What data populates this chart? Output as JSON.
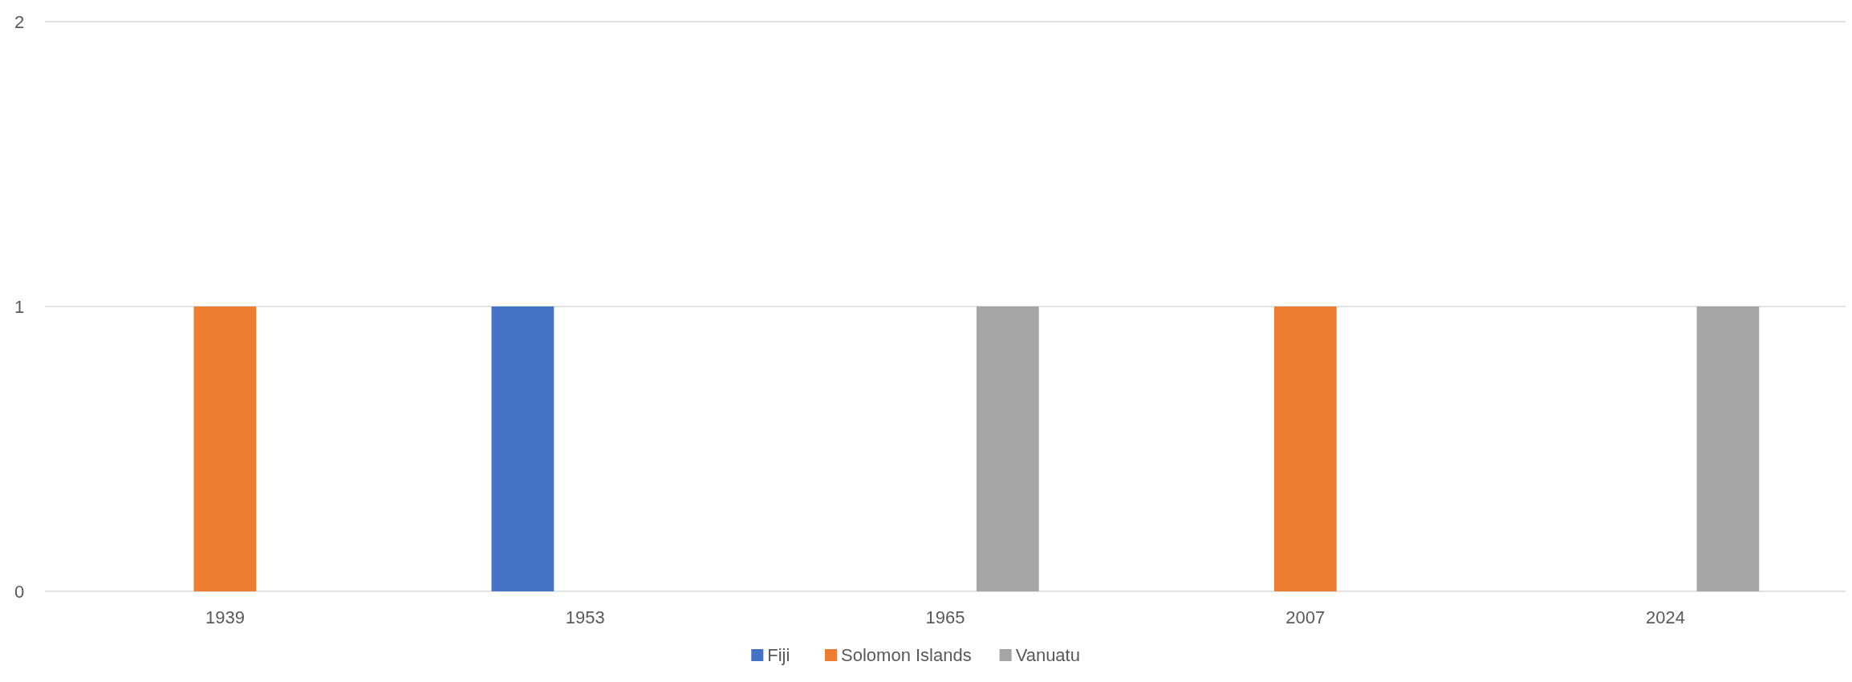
{
  "chart_data": {
    "type": "bar",
    "categories": [
      "1939",
      "1953",
      "1965",
      "2007",
      "2024"
    ],
    "series": [
      {
        "name": "Fiji",
        "color": "#4472c4",
        "values": [
          0,
          1,
          0,
          0,
          0
        ]
      },
      {
        "name": "Solomon Islands",
        "color": "#ed7d31",
        "values": [
          1,
          0,
          0,
          1,
          0
        ]
      },
      {
        "name": "Vanuatu",
        "color": "#a5a5a5",
        "values": [
          0,
          0,
          1,
          0,
          1
        ]
      }
    ],
    "ylim": [
      0,
      2
    ],
    "yticks": [
      0,
      1,
      2
    ],
    "grid": "y",
    "legend": "bottom"
  }
}
